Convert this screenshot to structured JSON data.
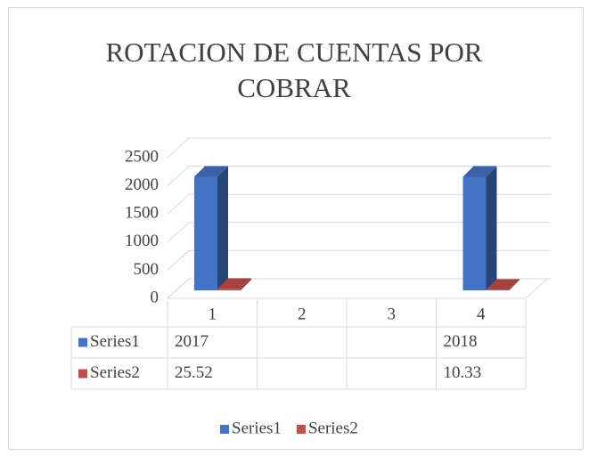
{
  "chart_data": {
    "type": "bar3d",
    "title": "ROTACION DE CUENTAS POR COBRAR",
    "categories": [
      "1",
      "2",
      "3",
      "4"
    ],
    "series": [
      {
        "name": "Series1",
        "color": "#4472c4",
        "values": [
          2017,
          null,
          null,
          2018
        ]
      },
      {
        "name": "Series2",
        "color": "#c0504d",
        "values": [
          25.52,
          null,
          null,
          10.33
        ]
      }
    ],
    "ylim": [
      0,
      2500
    ],
    "yticks": [
      0,
      500,
      1000,
      1500,
      2000,
      2500
    ],
    "grid": true,
    "legend": "bottom"
  }
}
